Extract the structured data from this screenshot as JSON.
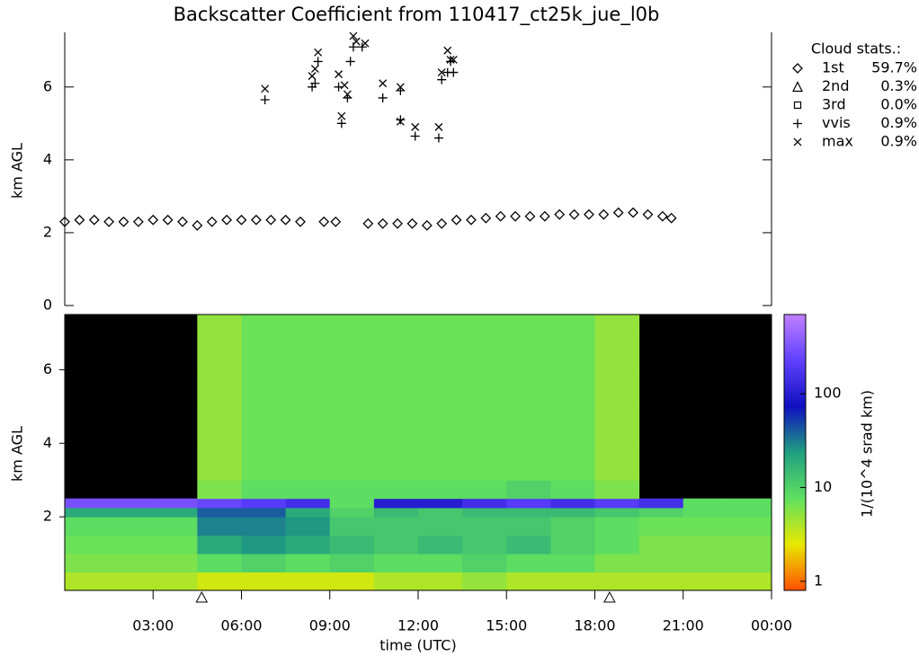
{
  "chart_data": [
    {
      "type": "scatter",
      "title": "Backscatter Coefficient from 110417_ct25k_jue_l0b",
      "ylabel": "km AGL",
      "xlim": [
        0,
        24
      ],
      "ylim": [
        0,
        7.5
      ],
      "yticks": [
        0,
        2,
        4,
        6
      ],
      "legend_title": "Cloud stats.:",
      "series": [
        {
          "name": "1st",
          "stat": "59.7%",
          "marker": "diamond",
          "x": [
            0,
            0.5,
            1,
            1.5,
            2,
            2.5,
            3,
            3.5,
            4,
            4.5,
            5,
            5.5,
            6,
            6.5,
            7,
            7.5,
            8,
            8.8,
            9.2,
            10.3,
            10.8,
            11.3,
            11.8,
            12.3,
            12.8,
            13.3,
            13.8,
            14.3,
            14.8,
            15.3,
            15.8,
            16.3,
            16.8,
            17.3,
            17.8,
            18.3,
            18.8,
            19.3,
            19.8,
            20.3,
            20.6
          ],
          "y": [
            2.3,
            2.35,
            2.35,
            2.3,
            2.3,
            2.3,
            2.35,
            2.35,
            2.3,
            2.2,
            2.3,
            2.35,
            2.35,
            2.35,
            2.35,
            2.35,
            2.3,
            2.3,
            2.3,
            2.25,
            2.25,
            2.25,
            2.25,
            2.2,
            2.25,
            2.35,
            2.35,
            2.4,
            2.45,
            2.45,
            2.45,
            2.45,
            2.5,
            2.5,
            2.5,
            2.5,
            2.55,
            2.55,
            2.5,
            2.45,
            2.4
          ]
        },
        {
          "name": "2nd",
          "stat": "0.3%",
          "marker": "triangle",
          "x": [],
          "y": []
        },
        {
          "name": "3rd",
          "stat": "0.0%",
          "marker": "square",
          "x": [],
          "y": []
        },
        {
          "name": "vvis",
          "stat": "0.9%",
          "marker": "plus",
          "x": [
            6.8,
            8.4,
            8.5,
            8.6,
            9.3,
            9.4,
            9.6,
            9.7,
            9.8,
            10.1,
            10.8,
            11.4,
            11.4,
            11.9,
            12.7,
            12.8,
            13.0,
            13.1,
            13.2
          ],
          "y": [
            5.65,
            6.0,
            6.1,
            6.7,
            6.0,
            5.0,
            5.7,
            6.7,
            7.1,
            7.1,
            5.7,
            5.1,
            5.9,
            4.65,
            4.6,
            6.2,
            6.4,
            6.7,
            6.4
          ]
        },
        {
          "name": "max",
          "stat": "0.9%",
          "marker": "cross",
          "x": [
            6.8,
            8.4,
            8.5,
            8.6,
            9.3,
            9.4,
            9.5,
            9.6,
            9.8,
            9.9,
            10.2,
            10.8,
            11.4,
            11.4,
            11.9,
            12.7,
            12.8,
            13.0,
            13.1,
            13.2
          ],
          "y": [
            5.95,
            6.3,
            6.5,
            6.95,
            6.35,
            5.2,
            6.05,
            5.8,
            7.4,
            7.25,
            7.2,
            6.1,
            6.0,
            5.05,
            4.9,
            4.9,
            6.4,
            7.0,
            6.75,
            6.75
          ]
        }
      ]
    },
    {
      "type": "heatmap",
      "ylabel": "km AGL",
      "xlabel": "time (UTC)",
      "xlim": [
        0,
        24
      ],
      "xticks": [
        {
          "value": 3,
          "label": "03:00"
        },
        {
          "value": 6,
          "label": "06:00"
        },
        {
          "value": 9,
          "label": "09:00"
        },
        {
          "value": 12,
          "label": "12:00"
        },
        {
          "value": 15,
          "label": "15:00"
        },
        {
          "value": 18,
          "label": "18:00"
        },
        {
          "value": 21,
          "label": "21:00"
        },
        {
          "value": 24,
          "label": "00:00"
        }
      ],
      "ylim": [
        0,
        7.5
      ],
      "yticks": [
        2,
        4,
        6
      ],
      "x_edges": [
        0,
        1.5,
        3,
        4.5,
        6,
        7.5,
        9,
        10.5,
        12,
        13.5,
        15,
        16.5,
        18,
        19.5,
        21,
        22.5,
        24
      ],
      "y_edges": [
        0,
        0.5,
        1,
        1.5,
        2,
        2.25,
        2.5,
        3,
        4,
        5,
        6,
        7,
        7.5
      ],
      "z": [
        [
          4,
          4,
          4,
          3,
          3,
          3,
          3,
          4,
          4,
          5,
          4,
          4,
          4,
          4,
          4,
          4
        ],
        [
          6,
          6,
          6,
          8,
          10,
          8,
          10,
          8,
          8,
          10,
          8,
          8,
          6,
          6,
          6,
          6
        ],
        [
          7,
          7,
          7,
          20,
          25,
          20,
          15,
          12,
          15,
          12,
          15,
          10,
          8,
          6,
          6,
          6
        ],
        [
          8,
          8,
          8,
          30,
          30,
          25,
          12,
          12,
          12,
          12,
          12,
          10,
          8,
          7,
          7,
          7
        ],
        [
          20,
          20,
          20,
          40,
          40,
          20,
          10,
          15,
          12,
          15,
          15,
          15,
          12,
          10,
          8,
          8
        ],
        [
          300,
          300,
          300,
          250,
          200,
          150,
          8,
          100,
          100,
          150,
          200,
          150,
          200,
          150,
          8,
          8
        ],
        [
          null,
          null,
          null,
          6,
          8,
          8,
          8,
          8,
          8,
          8,
          10,
          8,
          6,
          null,
          null,
          null
        ],
        [
          null,
          null,
          null,
          5,
          7,
          7,
          7,
          7,
          7,
          7,
          7,
          7,
          5,
          null,
          null,
          null
        ],
        [
          null,
          null,
          null,
          5,
          7,
          7,
          7,
          7,
          7,
          7,
          7,
          7,
          5,
          null,
          null,
          null
        ],
        [
          null,
          null,
          null,
          5,
          7,
          7,
          7,
          7,
          7,
          7,
          7,
          7,
          5,
          null,
          null,
          null
        ],
        [
          null,
          null,
          null,
          5,
          7,
          7,
          7,
          7,
          7,
          7,
          7,
          7,
          5,
          null,
          null,
          null
        ],
        [
          null,
          null,
          null,
          5,
          7,
          7,
          7,
          7,
          7,
          7,
          7,
          7,
          5,
          null,
          null,
          null
        ]
      ],
      "triangles_x": [
        4.65,
        18.5
      ],
      "clim": [
        0.8,
        700
      ],
      "log_color": true,
      "cticks": [
        1,
        10,
        100
      ],
      "clabel": "1/(10^4 srad km)",
      "colormap": [
        "#ff5000",
        "#e8e800",
        "#60e060",
        "#20a080",
        "#1010c0",
        "#6040ff",
        "#c080ff"
      ],
      "empty_color": "#000000"
    }
  ]
}
